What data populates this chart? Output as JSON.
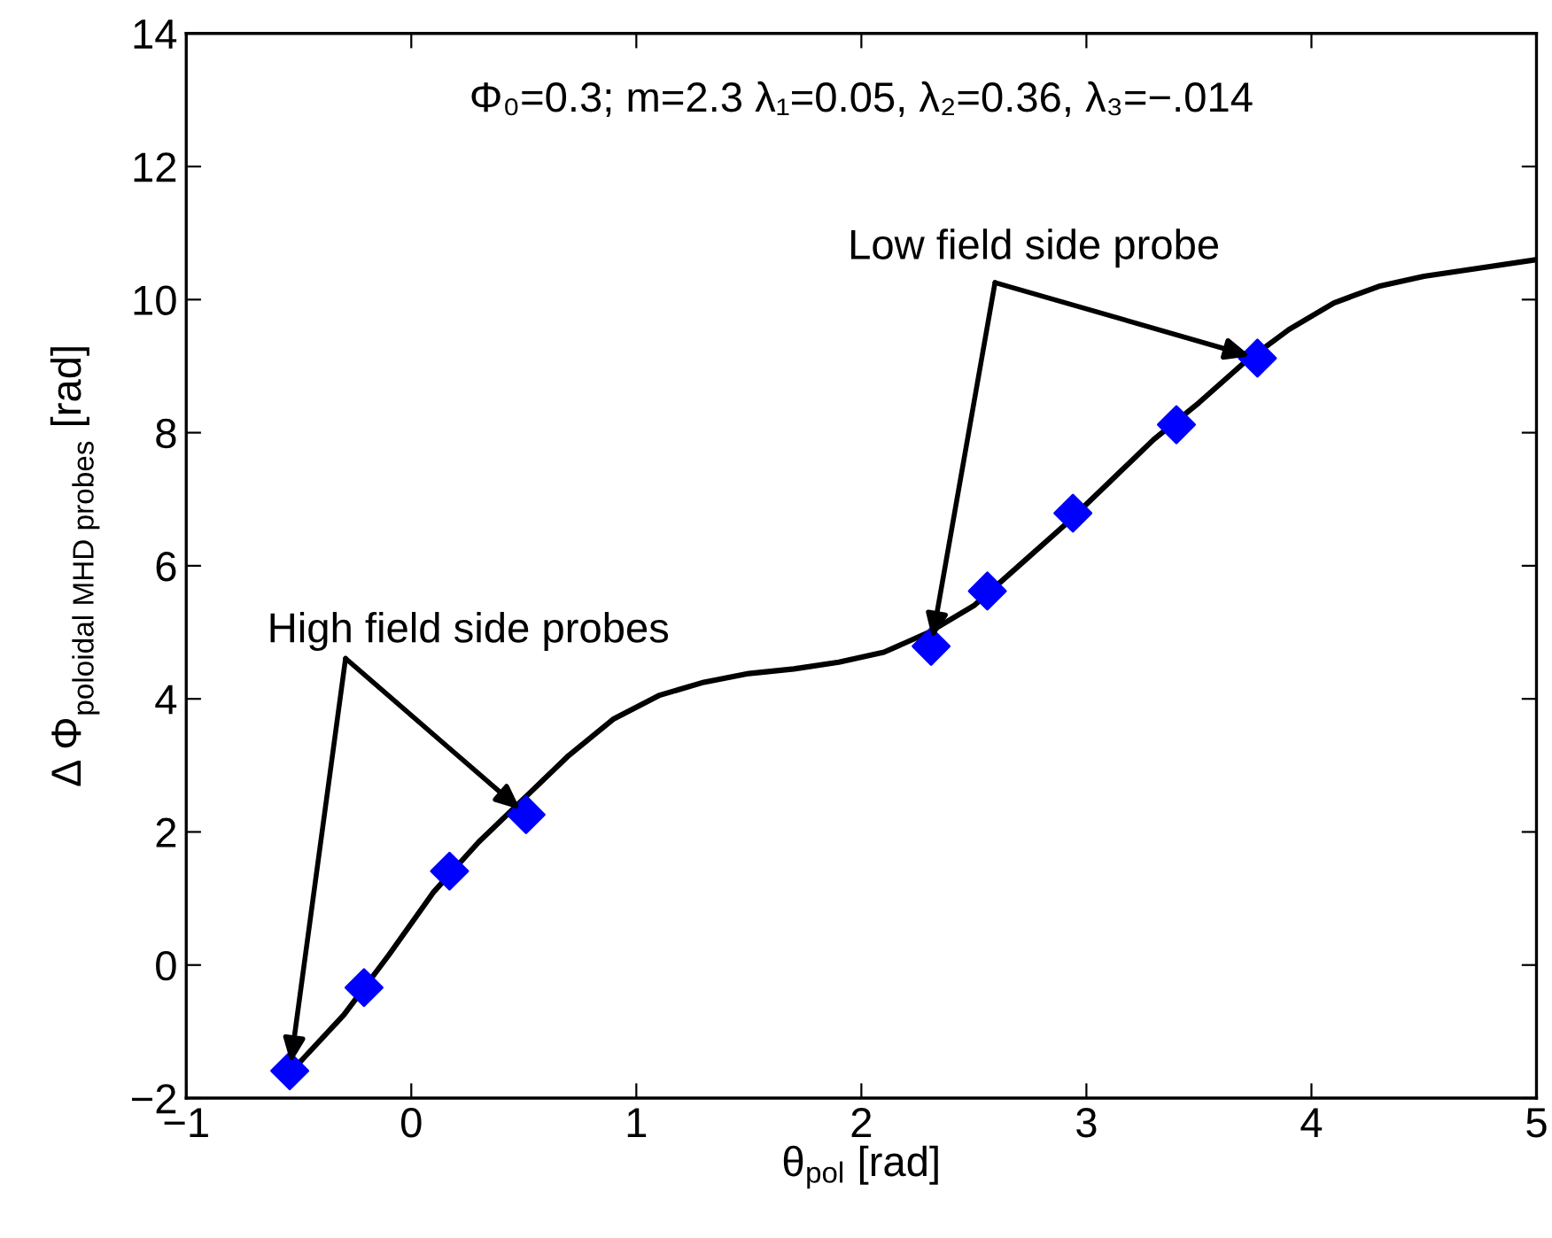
{
  "chart_data": {
    "type": "line",
    "xlabel": "θ$_{pol}$ [rad]",
    "ylabel": "Δ Φ$_{poloidal MHD probes}$ [rad]",
    "xlim": [
      -1,
      5
    ],
    "ylim": [
      -2,
      14
    ],
    "xticks": [
      -1,
      0,
      1,
      2,
      3,
      4,
      5
    ],
    "yticks": [
      -2,
      0,
      2,
      4,
      6,
      8,
      10,
      12,
      14
    ],
    "grid": false,
    "legend": false,
    "series": [
      {
        "type": "line",
        "color": "#000000",
        "line_style": "solid",
        "marker": "none",
        "x": [
          -0.52,
          -0.3,
          -0.1,
          0.1,
          0.3,
          0.5,
          0.7,
          0.9,
          1.1,
          1.3,
          1.5,
          1.7,
          1.9,
          2.1,
          2.3,
          2.5,
          2.7,
          2.9,
          3.1,
          3.3,
          3.5,
          3.7,
          3.9,
          4.1,
          4.3,
          4.5,
          4.7,
          5.0
        ],
        "values": [
          -1.55,
          -0.75,
          0.15,
          1.1,
          1.85,
          2.5,
          3.15,
          3.7,
          4.05,
          4.25,
          4.38,
          4.45,
          4.55,
          4.7,
          5.0,
          5.4,
          6.0,
          6.6,
          7.25,
          7.9,
          8.45,
          9.05,
          9.55,
          9.95,
          10.2,
          10.35,
          10.45,
          10.6
        ]
      },
      {
        "type": "scatter",
        "color": "#0000ff",
        "marker": "diamond",
        "x": [
          -0.54,
          -0.21,
          0.17,
          0.51
        ],
        "values": [
          -1.59,
          -0.34,
          1.41,
          2.26
        ]
      },
      {
        "type": "scatter",
        "color": "#0000ff",
        "marker": "diamond",
        "x": [
          2.31,
          2.56,
          2.94,
          3.4,
          3.76
        ],
        "values": [
          4.79,
          5.62,
          6.79,
          8.12,
          9.12
        ]
      }
    ],
    "annotations": [
      "Φ₀=0.3; m=2.3 λ₁=0.05, λ₂=0.36, λ₃=−.014",
      {
        "text": "High field side probes",
        "x": 0.51,
        "y": 2.26
      },
      {
        "text": "Low field side probe",
        "x": 3.76,
        "y": 9.12
      }
    ]
  }
}
